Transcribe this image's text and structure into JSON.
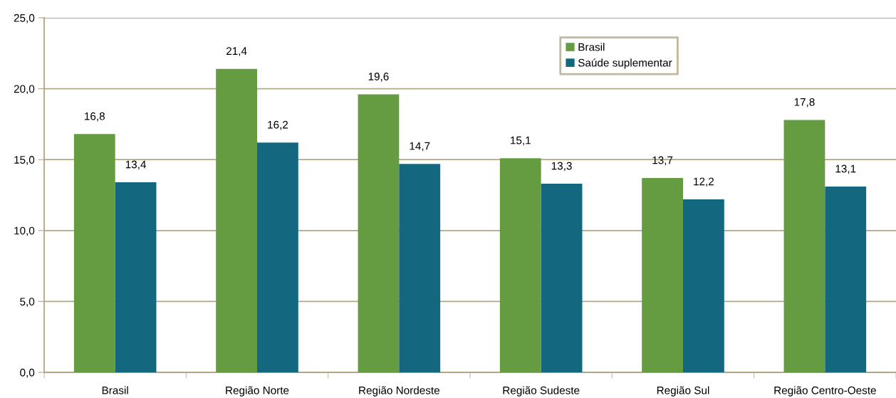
{
  "chart_data": {
    "type": "bar",
    "categories": [
      "Brasil",
      "Região Norte",
      "Região Nordeste",
      "Região Sudeste",
      "Região Sul",
      "Região Centro-Oeste"
    ],
    "series": [
      {
        "name": "Brasil",
        "color": "#669c41",
        "values": [
          16.8,
          21.4,
          19.6,
          15.1,
          13.7,
          17.8
        ],
        "value_labels": [
          "16,8",
          "21,4",
          "19,6",
          "15,1",
          "13,7",
          "17,8"
        ]
      },
      {
        "name": "Saúde suplementar",
        "color": "#13687f",
        "values": [
          13.4,
          16.2,
          14.7,
          13.3,
          12.2,
          13.1
        ],
        "value_labels": [
          "13,4",
          "16,2",
          "14,7",
          "13,3",
          "12,2",
          "13,1"
        ]
      }
    ],
    "ylim": [
      0,
      25
    ],
    "yticks": [
      {
        "value": 0,
        "label": "0,0"
      },
      {
        "value": 5,
        "label": "5,0"
      },
      {
        "value": 10,
        "label": "10,0"
      },
      {
        "value": 15,
        "label": "15,0"
      },
      {
        "value": 20,
        "label": "20,0"
      },
      {
        "value": 25,
        "label": "25,0"
      }
    ],
    "grid": "y",
    "legend": "top right"
  }
}
